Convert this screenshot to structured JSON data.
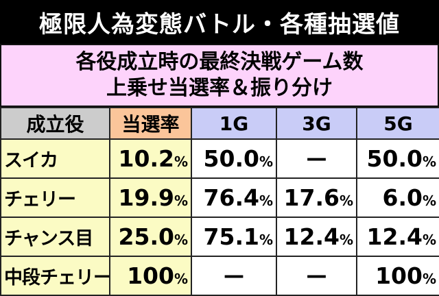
{
  "title": "極限人為変態バトル・各種抽選値",
  "header": {
    "line1": "各役成立時の最終決戦ゲーム数",
    "line2": "上乗せ当選率＆振り分け"
  },
  "columns": [
    "成立役",
    "当選率",
    "1G",
    "3G",
    "5G"
  ],
  "rows": [
    {
      "role": "スイカ",
      "rate": "10.2",
      "rate_unit": "%",
      "g1": "50.0",
      "g1_unit": "%",
      "g3": "—",
      "g5": "50.0",
      "g5_unit": "%"
    },
    {
      "role": "チェリー",
      "rate": "19.9",
      "rate_unit": "%",
      "g1": "76.4",
      "g1_unit": "%",
      "g3": "17.6",
      "g3_unit": "%",
      "g5": "6.0",
      "g5_unit": "%"
    },
    {
      "role": "チャンス目",
      "rate": "25.0",
      "rate_unit": "%",
      "g1": "75.1",
      "g1_unit": "%",
      "g3": "12.4",
      "g3_unit": "%",
      "g5": "12.4",
      "g5_unit": "%"
    },
    {
      "role": "中段チェリー",
      "rate": "100",
      "rate_unit": "%",
      "g1": "—",
      "g3": "—",
      "g5": "100",
      "g5_unit": "%"
    }
  ],
  "colors": {
    "title_bg": "#000000",
    "header_bg": "#fdd3fb",
    "role_header_bg": "#cccccc",
    "rate_header_bg": "#fbc59a",
    "game_header_bg": "#c9ccf7",
    "role_cell_bg": "#fbfbc4"
  }
}
